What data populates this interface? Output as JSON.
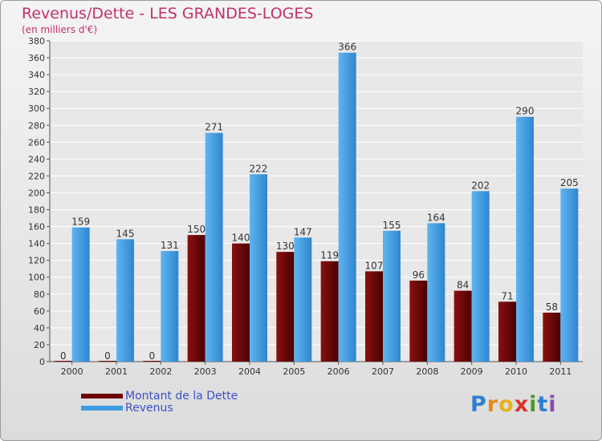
{
  "chart_data": {
    "type": "bar",
    "title": "Revenus/Dette - LES GRANDES-LOGES",
    "subtitle": "(en milliers d'€)",
    "xlabel": "",
    "ylabel": "",
    "ylim": [
      0,
      380
    ],
    "yticks": [
      0,
      20,
      40,
      60,
      80,
      100,
      120,
      140,
      160,
      180,
      200,
      220,
      240,
      260,
      280,
      300,
      320,
      340,
      360,
      380
    ],
    "grid": true,
    "categories": [
      "2000",
      "2001",
      "2002",
      "2003",
      "2004",
      "2005",
      "2006",
      "2007",
      "2008",
      "2009",
      "2010",
      "2011"
    ],
    "series": [
      {
        "name": "Montant de la Dette",
        "color": "#6b0000",
        "values": [
          0,
          0,
          0,
          150,
          140,
          130,
          119,
          107,
          96,
          84,
          71,
          58
        ]
      },
      {
        "name": "Revenus",
        "color": "#3d9be2",
        "values": [
          159,
          145,
          131,
          271,
          222,
          147,
          366,
          155,
          164,
          202,
          290,
          205
        ]
      }
    ],
    "legend_position": "bottom-left"
  },
  "logo": {
    "letters": [
      "P",
      "r",
      "o",
      "x",
      "i",
      "t",
      "i"
    ],
    "colors": [
      "#2f7fd0",
      "#e88a1a",
      "#e8b21a",
      "#d9342b",
      "#4a9a2a",
      "#2f7fd0",
      "#8a4ab0"
    ]
  }
}
